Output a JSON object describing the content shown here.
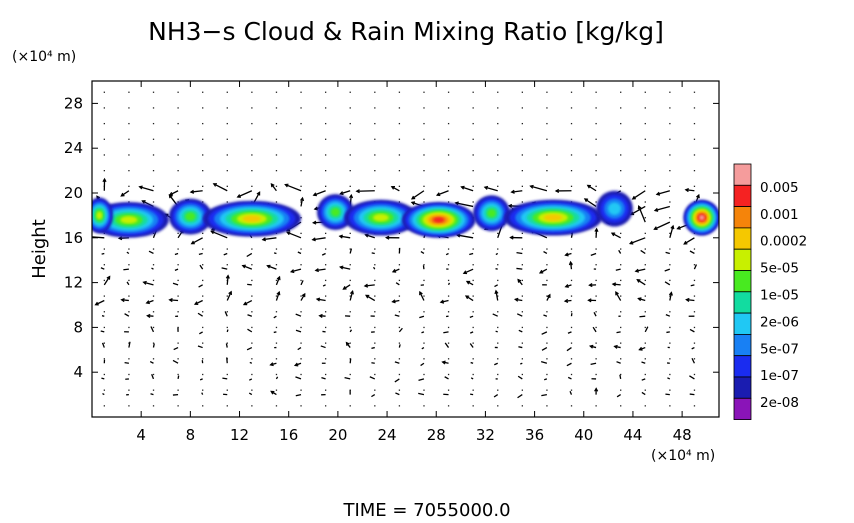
{
  "chart_data": {
    "type": "heatmap",
    "title": "NH3−s Cloud & Rain Mixing Ratio [kg/kg]",
    "ylabel": "Height",
    "y_unit": "(×10⁴ m)",
    "x_unit": "(×10⁴ m)",
    "footer": "TIME = 7055000.0",
    "xlim": [
      0,
      51
    ],
    "ylim": [
      0,
      30
    ],
    "x_ticks": [
      4,
      8,
      12,
      16,
      20,
      24,
      28,
      32,
      36,
      40,
      44,
      48
    ],
    "y_ticks": [
      4,
      8,
      12,
      16,
      20,
      24,
      28
    ],
    "colorbar": {
      "labels": [
        "0.005",
        "0.001",
        "0.0002",
        "5e-05",
        "1e-05",
        "2e-06",
        "5e-07",
        "1e-07",
        "2e-08"
      ],
      "colors": [
        "#f59c9c",
        "#f52222",
        "#f5840a",
        "#f5c800",
        "#c8f000",
        "#48ea20",
        "#12dca0",
        "#20c8f4",
        "#1880f4",
        "#1a2cf0",
        "#1a1cb0",
        "#8a14b8"
      ]
    },
    "cloud_layer": {
      "height_range": [
        16,
        20
      ],
      "cells": [
        {
          "x": 3.0,
          "y": 17.6,
          "w": 6.5,
          "intensity": 0.55
        },
        {
          "x": 8.0,
          "y": 17.9,
          "w": 3.5,
          "intensity": 0.45
        },
        {
          "x": 13.0,
          "y": 17.7,
          "w": 8.0,
          "intensity": 0.7
        },
        {
          "x": 19.8,
          "y": 18.3,
          "w": 3.0,
          "intensity": 0.5
        },
        {
          "x": 23.5,
          "y": 17.8,
          "w": 6.0,
          "intensity": 0.6
        },
        {
          "x": 28.2,
          "y": 17.6,
          "w": 6.0,
          "intensity": 0.9
        },
        {
          "x": 32.5,
          "y": 18.2,
          "w": 3.0,
          "intensity": 0.5
        },
        {
          "x": 37.5,
          "y": 17.8,
          "w": 8.0,
          "intensity": 0.72
        },
        {
          "x": 42.5,
          "y": 18.6,
          "w": 3.0,
          "intensity": 0.3
        },
        {
          "x": 49.6,
          "y": 17.8,
          "w": 3.0,
          "intensity": 0.95
        },
        {
          "x": 0.6,
          "y": 18.0,
          "w": 2.2,
          "intensity": 0.55
        }
      ]
    },
    "wind_vectors": "field of short black arrows over the domain, strongest near heights 16–20 and 10"
  }
}
